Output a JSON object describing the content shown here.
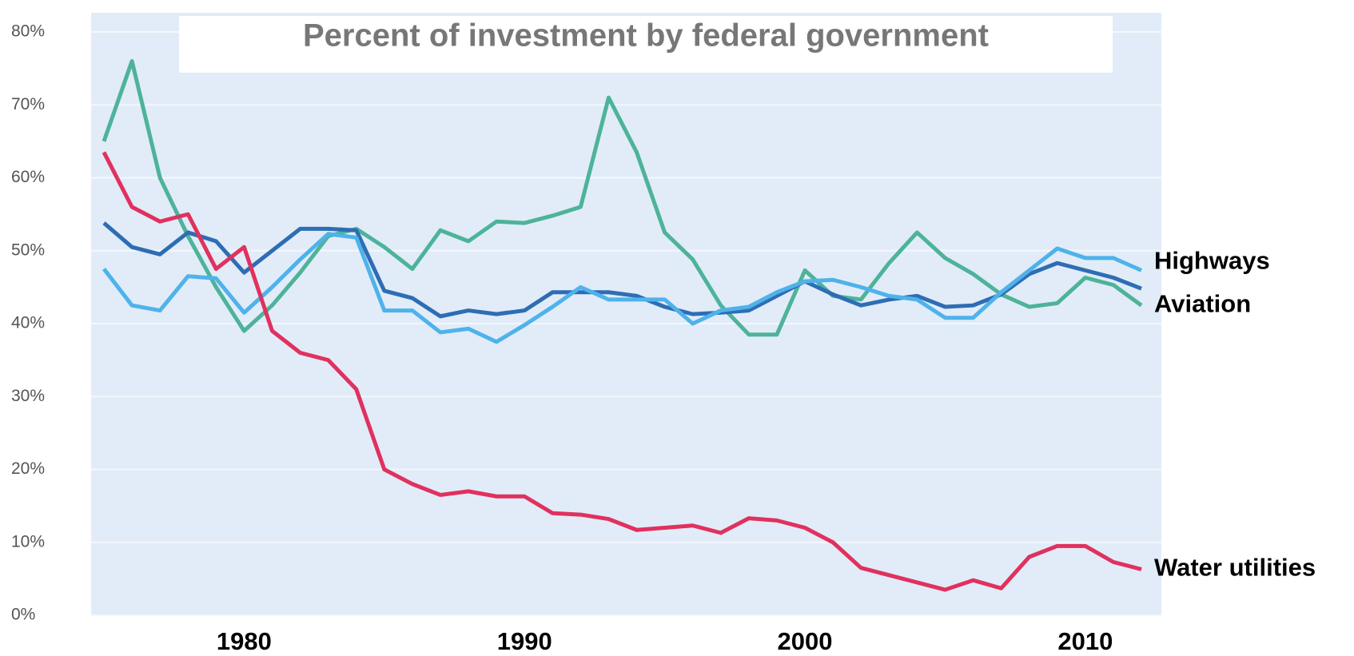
{
  "chart_data": {
    "type": "line",
    "title": "Percent of investment by federal government",
    "x": [
      1975,
      1976,
      1977,
      1978,
      1979,
      1980,
      1981,
      1982,
      1983,
      1984,
      1985,
      1986,
      1987,
      1988,
      1989,
      1990,
      1991,
      1992,
      1993,
      1994,
      1995,
      1996,
      1997,
      1998,
      1999,
      2000,
      2001,
      2002,
      2003,
      2004,
      2005,
      2006,
      2007,
      2008,
      2009,
      2010,
      2011,
      2012
    ],
    "xlim": [
      1975,
      2012
    ],
    "xticks": [
      1980,
      1990,
      2000,
      2010
    ],
    "ylim": [
      0,
      80
    ],
    "yticks": [
      {
        "value": 0,
        "label": "0%"
      },
      {
        "value": 10,
        "label": "10%"
      },
      {
        "value": 20,
        "label": "20%"
      },
      {
        "value": 30,
        "label": "30%"
      },
      {
        "value": 40,
        "label": "40%"
      },
      {
        "value": 50,
        "label": "50%"
      },
      {
        "value": 60,
        "label": "60%"
      },
      {
        "value": 70,
        "label": "70%"
      },
      {
        "value": 80,
        "label": "80%"
      }
    ],
    "grid": true,
    "series": [
      {
        "color": "#4db39a",
        "values": [
          65,
          76,
          60,
          52,
          45,
          39,
          42.5,
          47,
          52,
          53,
          50.5,
          47.5,
          52.8,
          51.3,
          54,
          53.8,
          54.8,
          56,
          71,
          63.5,
          52.5,
          48.8,
          42.5,
          38.5,
          38.5,
          47.3,
          43.8,
          43.3,
          48.3,
          52.5,
          49,
          46.8,
          44,
          42.3,
          42.8,
          46.3,
          45.3,
          42.5
        ]
      },
      {
        "color": "#2e6db4",
        "values": [
          53.8,
          50.5,
          49.5,
          52.5,
          51.3,
          47,
          50,
          53,
          53,
          52.8,
          44.5,
          43.5,
          41,
          41.8,
          41.3,
          41.8,
          44.3,
          44.3,
          44.3,
          43.8,
          42.3,
          41.3,
          41.5,
          41.8,
          43.8,
          45.8,
          44,
          42.5,
          43.3,
          43.8,
          42.3,
          42.5,
          44,
          46.8,
          48.3,
          47.3,
          46.3,
          44.8
        ]
      },
      {
        "name": "Highways",
        "color": "#4fb2ea",
        "values": [
          47.5,
          42.5,
          41.8,
          46.5,
          46.2,
          41.5,
          45,
          48.8,
          52.3,
          51.8,
          41.8,
          41.8,
          38.8,
          39.3,
          37.5,
          39.8,
          42.3,
          45,
          43.3,
          43.3,
          43.3,
          40,
          41.8,
          42.3,
          44.3,
          45.8,
          46,
          45,
          43.8,
          43.3,
          40.8,
          40.8,
          44.3,
          47.3,
          50.3,
          49,
          49,
          47.3
        ]
      },
      {
        "name": "Aviation",
        "color": "#4db39a",
        "values": null
      },
      {
        "name": "Water utilities",
        "color": "#e0315f",
        "values": [
          63.5,
          56,
          54,
          55,
          47.5,
          50.5,
          39,
          36,
          35,
          31,
          20,
          18,
          16.5,
          17,
          16.3,
          16.3,
          14,
          13.8,
          13.2,
          11.7,
          12,
          12.3,
          11.3,
          13.3,
          13,
          12,
          10,
          6.5,
          5.5,
          4.5,
          3.5,
          4.8,
          3.7,
          8,
          9.5,
          9.5,
          7.3,
          6.3
        ]
      }
    ]
  }
}
